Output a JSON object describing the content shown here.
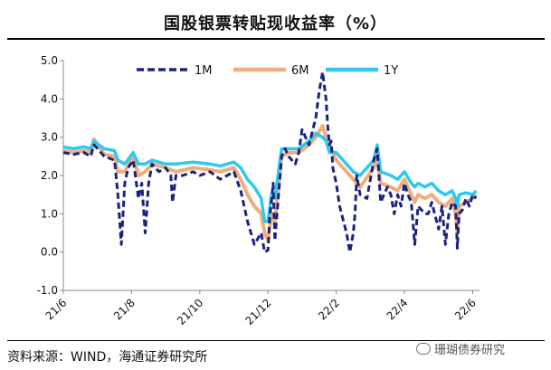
{
  "page": {
    "title": "国股银票转贴现收益率（%）",
    "source": "资料来源：WIND，海通证券研究所",
    "watermark": "珊瑚债券研究"
  },
  "chart_data": {
    "type": "line",
    "title": "国股银票转贴现收益率（%）",
    "xlabel": "",
    "ylabel": "",
    "ylim": [
      -1.0,
      5.0
    ],
    "yticks": [
      -1.0,
      0.0,
      1.0,
      2.0,
      3.0,
      4.0,
      5.0
    ],
    "ytick_labels": [
      "-1.0",
      "0.0",
      "1.0",
      "2.0",
      "3.0",
      "4.0",
      "5.0"
    ],
    "xlim": [
      0,
      12.2
    ],
    "xticks": [
      0,
      2,
      4,
      6,
      8,
      10,
      12
    ],
    "xtick_labels": [
      "21/6",
      "21/8",
      "21/10",
      "21/12",
      "22/2",
      "22/4",
      "22/6"
    ],
    "legend_position": "top",
    "colors": {
      "1M": "#1a237e",
      "6M": "#f0ad7e",
      "1Y": "#2ec9ef"
    },
    "series": [
      {
        "name": "1M",
        "style": "dashed",
        "x": [
          0.0,
          0.3,
          0.6,
          0.8,
          0.9,
          1.2,
          1.5,
          1.6,
          1.7,
          1.8,
          1.9,
          2.05,
          2.2,
          2.3,
          2.4,
          2.5,
          2.6,
          2.8,
          3.0,
          3.15,
          3.2,
          3.3,
          3.5,
          3.8,
          4.0,
          4.3,
          4.6,
          4.8,
          5.0,
          5.2,
          5.4,
          5.6,
          5.8,
          5.9,
          6.0,
          6.05,
          6.1,
          6.15,
          6.2,
          6.4,
          6.5,
          6.6,
          6.8,
          6.9,
          7.0,
          7.2,
          7.4,
          7.5,
          7.6,
          7.7,
          7.75,
          7.8,
          7.85,
          7.9,
          8.0,
          8.1,
          8.3,
          8.4,
          8.5,
          8.55,
          8.6,
          8.7,
          8.9,
          9.1,
          9.2,
          9.3,
          9.5,
          9.6,
          9.7,
          9.8,
          9.9,
          10.0,
          10.1,
          10.2,
          10.3,
          10.4,
          10.6,
          10.7,
          10.8,
          11.0,
          11.1,
          11.2,
          11.3,
          11.4,
          11.5,
          11.55,
          11.6,
          11.7,
          11.8,
          11.9,
          12.0,
          12.1
        ],
        "values": [
          2.6,
          2.55,
          2.6,
          2.5,
          2.8,
          2.5,
          2.4,
          1.5,
          0.2,
          1.8,
          2.2,
          2.4,
          1.4,
          1.8,
          0.5,
          1.8,
          2.3,
          2.1,
          2.2,
          2.0,
          1.3,
          2.0,
          2.0,
          2.1,
          2.0,
          2.1,
          1.9,
          2.0,
          2.1,
          1.6,
          0.8,
          0.2,
          0.5,
          0.0,
          0.05,
          0.9,
          1.3,
          1.8,
          0.3,
          2.5,
          2.7,
          2.5,
          2.3,
          2.6,
          3.2,
          2.8,
          3.5,
          4.2,
          4.7,
          4.0,
          3.3,
          2.8,
          2.9,
          2.2,
          1.8,
          1.2,
          0.5,
          0.0,
          0.5,
          1.0,
          2.0,
          1.5,
          1.4,
          2.4,
          2.7,
          1.3,
          1.7,
          1.5,
          1.0,
          1.5,
          1.2,
          1.8,
          1.5,
          1.3,
          0.2,
          1.2,
          1.0,
          1.0,
          1.3,
          0.6,
          1.2,
          0.2,
          1.0,
          1.3,
          1.2,
          0.1,
          1.0,
          1.1,
          1.4,
          1.2,
          1.5,
          1.4
        ]
      },
      {
        "name": "6M",
        "style": "solid",
        "x": [
          0.0,
          0.3,
          0.6,
          0.8,
          0.9,
          1.2,
          1.5,
          1.6,
          1.8,
          2.05,
          2.2,
          2.4,
          2.6,
          3.0,
          3.3,
          3.8,
          4.3,
          4.6,
          5.0,
          5.2,
          5.4,
          5.6,
          5.8,
          5.9,
          6.0,
          6.1,
          6.2,
          6.4,
          6.6,
          6.9,
          7.2,
          7.4,
          7.6,
          7.7,
          7.8,
          8.0,
          8.3,
          8.5,
          8.7,
          9.1,
          9.2,
          9.3,
          9.6,
          9.8,
          10.0,
          10.2,
          10.3,
          10.4,
          10.6,
          10.8,
          11.0,
          11.2,
          11.4,
          11.5,
          11.55,
          11.6,
          11.8,
          12.0,
          12.1
        ],
        "values": [
          2.65,
          2.6,
          2.65,
          2.6,
          2.95,
          2.55,
          2.5,
          2.1,
          2.1,
          2.5,
          2.0,
          2.1,
          2.3,
          2.2,
          2.1,
          2.2,
          2.15,
          2.1,
          2.2,
          1.9,
          1.5,
          1.2,
          1.0,
          0.5,
          0.3,
          1.0,
          0.8,
          2.5,
          2.6,
          2.6,
          2.8,
          3.0,
          3.3,
          3.0,
          2.8,
          2.4,
          2.1,
          1.9,
          1.7,
          2.2,
          2.5,
          1.8,
          1.7,
          1.6,
          1.9,
          1.5,
          1.3,
          1.5,
          1.4,
          1.5,
          1.3,
          1.2,
          1.4,
          1.0,
          0.5,
          1.2,
          1.3,
          1.4,
          1.5
        ]
      },
      {
        "name": "1Y",
        "style": "solid",
        "x": [
          0.0,
          0.3,
          0.6,
          0.8,
          0.9,
          1.2,
          1.5,
          1.6,
          1.8,
          2.05,
          2.2,
          2.4,
          2.6,
          3.0,
          3.3,
          3.8,
          4.3,
          4.6,
          5.0,
          5.2,
          5.4,
          5.6,
          5.8,
          5.9,
          6.0,
          6.1,
          6.2,
          6.4,
          6.6,
          6.9,
          7.2,
          7.4,
          7.6,
          7.7,
          7.8,
          8.0,
          8.3,
          8.5,
          8.7,
          9.1,
          9.2,
          9.3,
          9.6,
          9.8,
          10.0,
          10.2,
          10.3,
          10.4,
          10.6,
          10.8,
          11.0,
          11.2,
          11.4,
          11.5,
          11.55,
          11.6,
          11.8,
          12.0,
          12.1
        ],
        "values": [
          2.75,
          2.7,
          2.75,
          2.7,
          2.9,
          2.7,
          2.65,
          2.4,
          2.3,
          2.6,
          2.3,
          2.3,
          2.4,
          2.3,
          2.3,
          2.35,
          2.3,
          2.25,
          2.35,
          2.2,
          1.9,
          1.7,
          1.4,
          0.8,
          0.8,
          1.5,
          1.4,
          2.7,
          2.7,
          2.7,
          2.9,
          3.1,
          3.0,
          2.9,
          2.6,
          2.6,
          2.3,
          2.1,
          2.0,
          2.4,
          2.8,
          2.1,
          2.0,
          1.9,
          2.1,
          1.8,
          1.7,
          1.8,
          1.7,
          1.8,
          1.6,
          1.5,
          1.6,
          1.4,
          1.2,
          1.5,
          1.55,
          1.5,
          1.6
        ]
      }
    ]
  }
}
